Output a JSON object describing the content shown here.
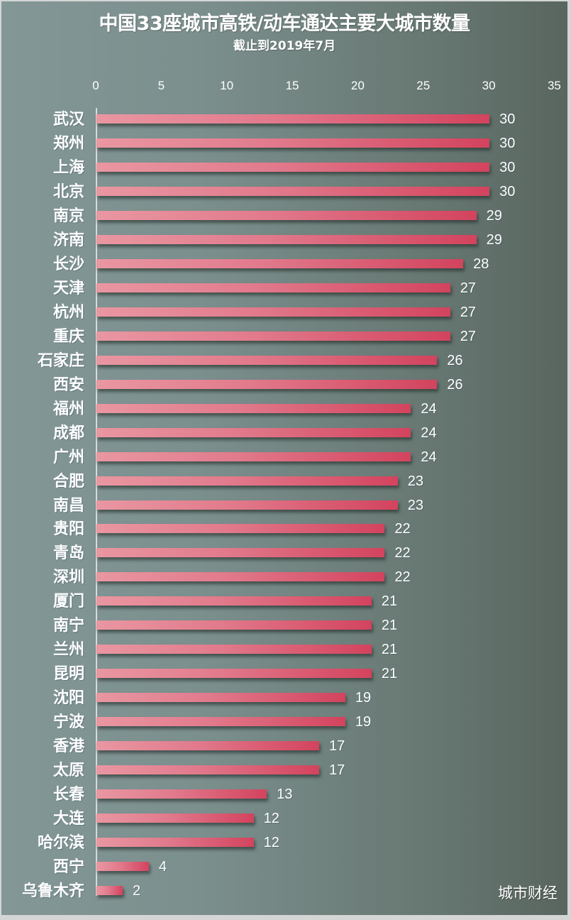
{
  "chart_data": {
    "type": "bar",
    "orientation": "horizontal",
    "title": "中国33座城市高铁/动车通达主要大城市数量",
    "subtitle": "截止到2019年7月",
    "xlabel": "",
    "ylabel": "",
    "xlim": [
      0,
      35
    ],
    "xticks": [
      "0",
      "5",
      "10",
      "15",
      "20",
      "25",
      "30",
      "35"
    ],
    "grid": false,
    "legend": null,
    "data_labels": true,
    "categories": [
      "武汉",
      "郑州",
      "上海",
      "北京",
      "南京",
      "济南",
      "长沙",
      "天津",
      "杭州",
      "重庆",
      "石家庄",
      "西安",
      "福州",
      "成都",
      "广州",
      "合肥",
      "南昌",
      "贵阳",
      "青岛",
      "深圳",
      "厦门",
      "南宁",
      "兰州",
      "昆明",
      "沈阳",
      "宁波",
      "香港",
      "太原",
      "长春",
      "大连",
      "哈尔滨",
      "西宁",
      "乌鲁木齐"
    ],
    "values": [
      30,
      30,
      30,
      30,
      29,
      29,
      28,
      27,
      27,
      27,
      26,
      26,
      24,
      24,
      24,
      23,
      23,
      22,
      22,
      22,
      21,
      21,
      21,
      21,
      19,
      19,
      17,
      17,
      13,
      12,
      12,
      4,
      2
    ],
    "colors": {
      "bar_start": "#e997a2",
      "bar_end": "#d3435e",
      "background_left": "#839797",
      "background_right": "#59665f",
      "text": "#ffffff"
    }
  },
  "watermark": "城市财经"
}
